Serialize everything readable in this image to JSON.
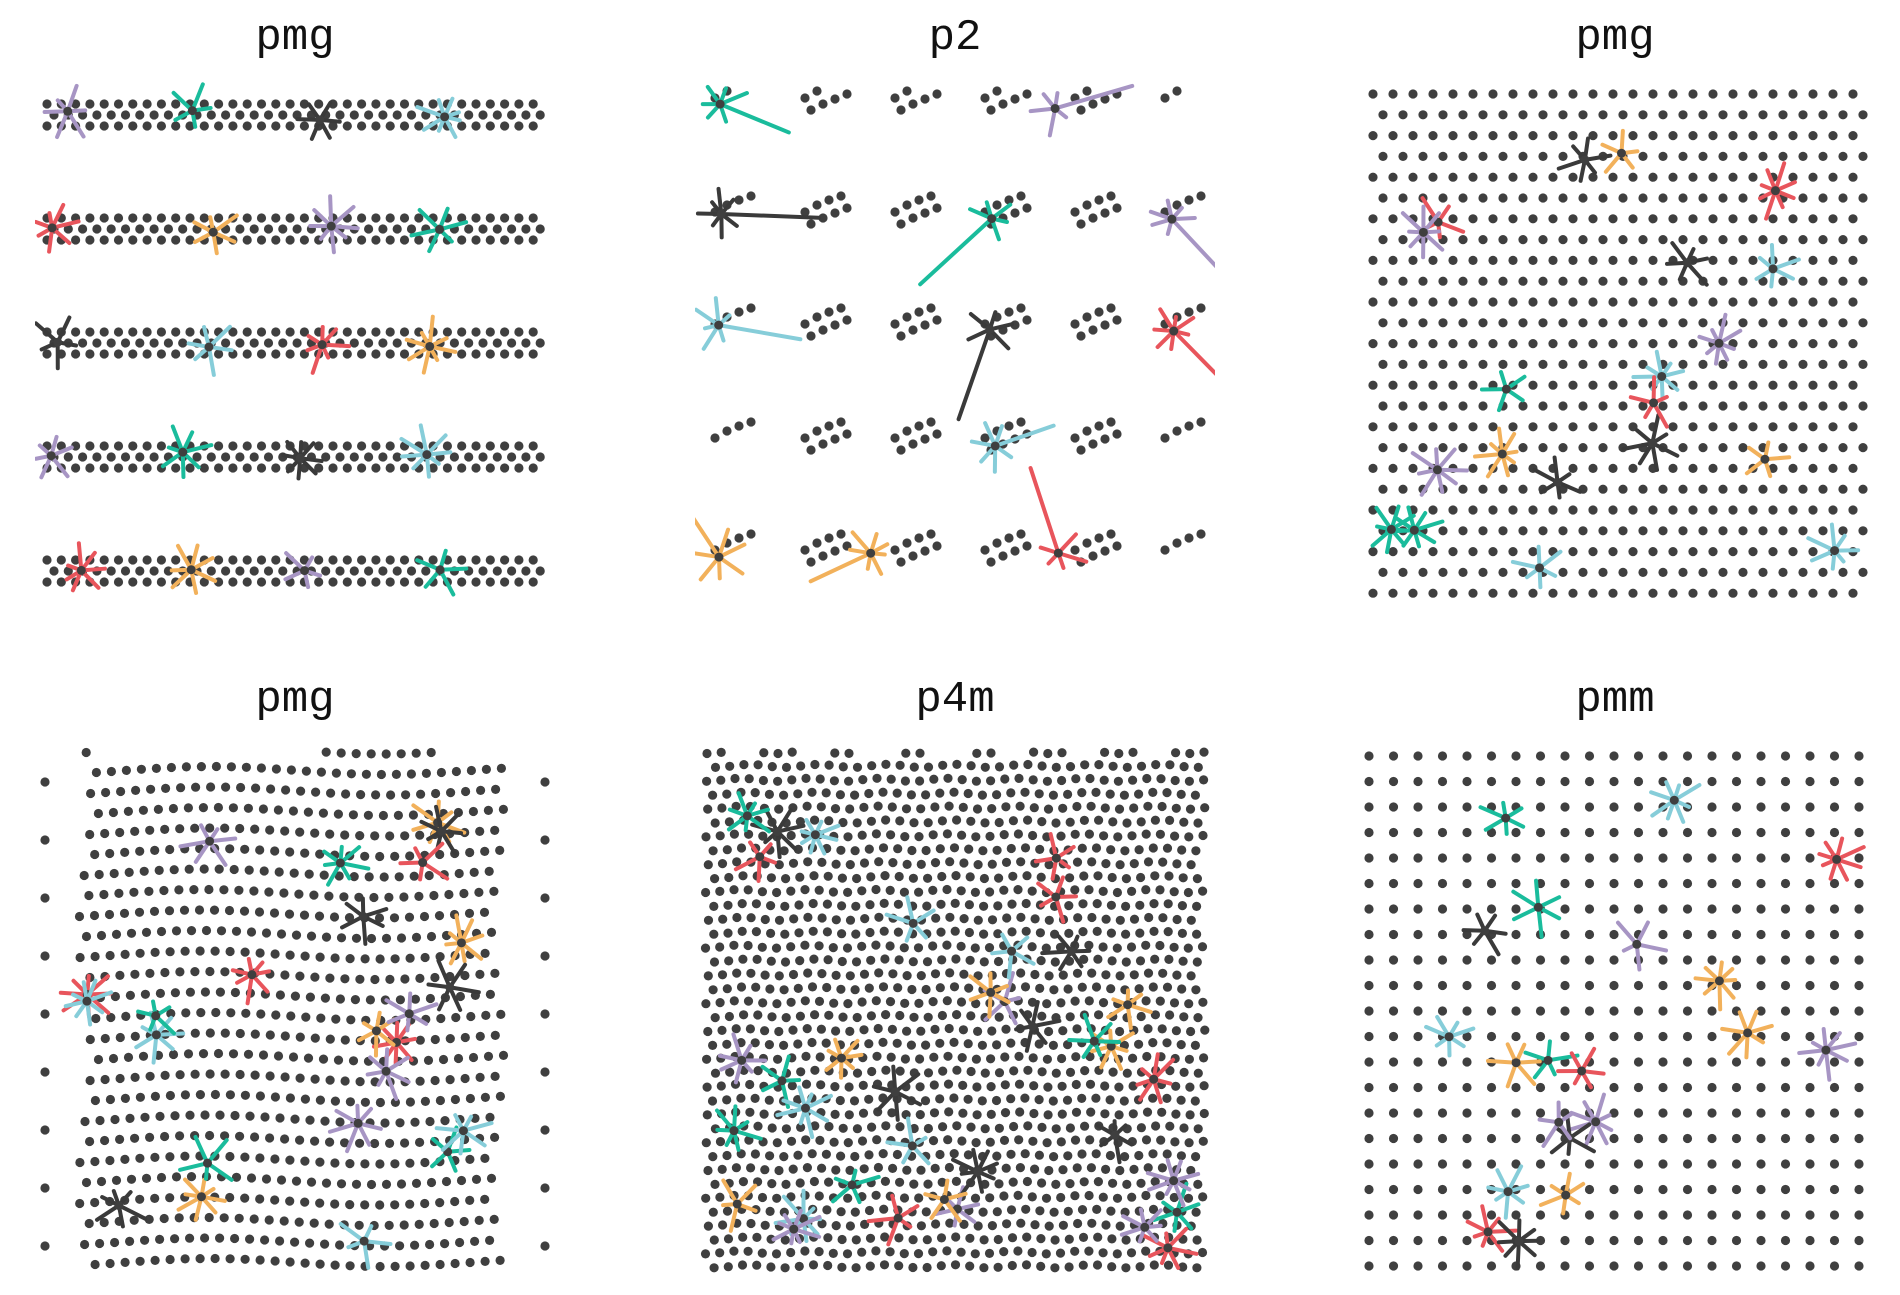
{
  "figure": {
    "colors": {
      "dot": "#3f3f3f",
      "gray": "#3a3a3a",
      "teal": "#1abc9c",
      "cyan": "#86cdd9",
      "orange": "#f2b15b",
      "red": "#e8555c",
      "purple": "#a795c4"
    },
    "panels": [
      {
        "id": "p1",
        "title": "pmg",
        "pattern": "rows",
        "star_count": 20
      },
      {
        "id": "p2",
        "title": "p2",
        "pattern": "clusters",
        "star_count": 12
      },
      {
        "id": "p3",
        "title": "pmg",
        "pattern": "lattice",
        "star_count": 20
      },
      {
        "id": "p4",
        "title": "pmg",
        "pattern": "warped",
        "star_count": 24
      },
      {
        "id": "p5",
        "title": "p4m",
        "pattern": "dense",
        "star_count": 36
      },
      {
        "id": "p6",
        "title": "pmm",
        "pattern": "grid",
        "star_count": 20
      }
    ]
  }
}
